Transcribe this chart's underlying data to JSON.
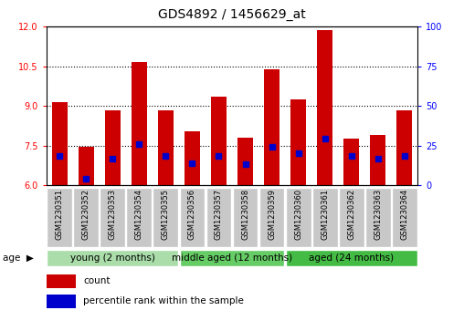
{
  "title": "GDS4892 / 1456629_at",
  "samples": [
    "GSM1230351",
    "GSM1230352",
    "GSM1230353",
    "GSM1230354",
    "GSM1230355",
    "GSM1230356",
    "GSM1230357",
    "GSM1230358",
    "GSM1230359",
    "GSM1230360",
    "GSM1230361",
    "GSM1230362",
    "GSM1230363",
    "GSM1230364"
  ],
  "bar_heights": [
    9.15,
    7.45,
    8.85,
    10.65,
    8.85,
    8.05,
    9.35,
    7.8,
    10.4,
    9.25,
    11.85,
    7.75,
    7.9,
    8.85
  ],
  "percentile_positions": [
    7.1,
    6.25,
    7.0,
    7.55,
    7.1,
    6.85,
    7.1,
    6.8,
    7.45,
    7.2,
    7.75,
    7.1,
    7.0,
    7.1
  ],
  "ylim_left": [
    6,
    12
  ],
  "ylim_right": [
    0,
    100
  ],
  "yticks_left": [
    6,
    7.5,
    9,
    10.5,
    12
  ],
  "yticks_right": [
    0,
    25,
    50,
    75,
    100
  ],
  "bar_color": "#cc0000",
  "percentile_color": "#0000cc",
  "bar_bottom": 6.0,
  "group_defs": [
    {
      "start": 0,
      "end": 5,
      "color": "#aaddaa",
      "label": "young (2 months)"
    },
    {
      "start": 5,
      "end": 9,
      "color": "#66cc66",
      "label": "middle aged (12 months)"
    },
    {
      "start": 9,
      "end": 14,
      "color": "#44bb44",
      "label": "aged (24 months)"
    }
  ],
  "dotted_gridlines": [
    7.5,
    9.0,
    10.5
  ],
  "bar_width": 0.6,
  "marker_size": 4,
  "title_fontsize": 10,
  "tick_fontsize": 7,
  "label_fontsize": 7,
  "legend_fontsize": 7.5,
  "group_label_fontsize": 7.5,
  "bar_edgecolor": "none"
}
